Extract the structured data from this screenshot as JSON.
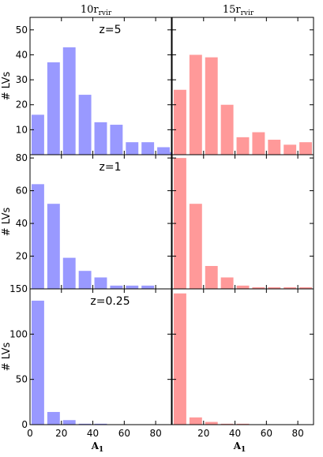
{
  "chart_data": {
    "type": "bar",
    "layout": "3x2 grid, shared axes",
    "columns": [
      {
        "title_main": "10r",
        "title_sub": "rvir",
        "color": "#9999ff"
      },
      {
        "title_main": "15r",
        "title_sub": "rvir",
        "color": "#ff9999"
      }
    ],
    "xlabel_main": "A",
    "xlabel_sub": "1",
    "xlim": [
      0,
      90
    ],
    "xticks": [
      0,
      20,
      40,
      60,
      80
    ],
    "ylabel": "# LVs",
    "bin_centers": [
      5,
      15,
      25,
      35,
      45,
      55,
      65,
      75,
      85
    ],
    "rows": [
      {
        "annotation": "z=5",
        "ylim": [
          0,
          55
        ],
        "yticks": [
          10,
          20,
          30,
          40,
          50
        ],
        "series": [
          {
            "values": [
              16,
              37,
              43,
              24,
              13,
              12,
              5,
              5,
              3
            ]
          },
          {
            "values": [
              26,
              40,
              39,
              20,
              7,
              9,
              6,
              4,
              5
            ]
          }
        ],
        "extra_bar": {
          "x_center": 88.5,
          "value": 1,
          "column": 0
        }
      },
      {
        "annotation": "z=1",
        "ylim": [
          0,
          82
        ],
        "yticks": [
          20,
          40,
          60,
          80
        ],
        "series": [
          {
            "values": [
              64,
              52,
              19,
              11,
              7,
              2,
              2,
              2,
              0
            ]
          },
          {
            "values": [
              80,
              52,
              14,
              7,
              2,
              1,
              1,
              1,
              1
            ]
          }
        ]
      },
      {
        "annotation": "z=0.25",
        "ylim": [
          0,
          150
        ],
        "yticks": [
          0,
          50,
          100,
          150
        ],
        "series": [
          {
            "values": [
              137,
              14,
              5,
              1,
              1,
              0,
              0,
              0,
              0
            ]
          },
          {
            "values": [
              145,
              8,
              3,
              1,
              1,
              0,
              0,
              0,
              0
            ]
          }
        ]
      }
    ]
  }
}
